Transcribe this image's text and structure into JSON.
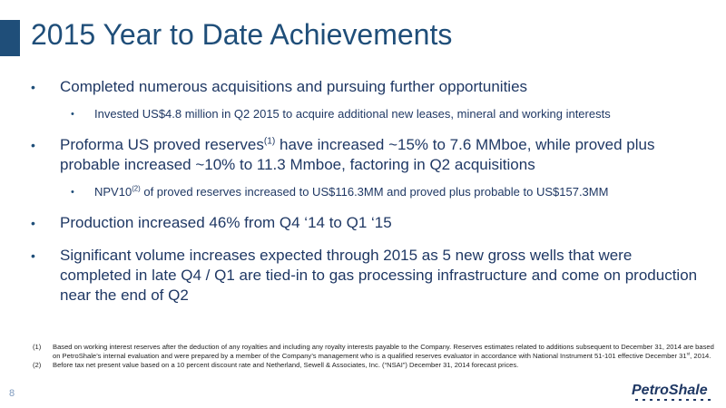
{
  "slide": {
    "title": "2015 Year to Date Achievements",
    "page_number": "8"
  },
  "bullets": [
    {
      "text": "Completed numerous acquisitions and pursuing further opportunities",
      "sub": [
        "Invested US$4.8 million in Q2 2015 to acquire additional new leases, mineral and working interests"
      ]
    },
    {
      "pre": "Proforma US proved reserves",
      "sup": "(1)",
      "post": " have increased ~15% to 7.6 MMboe, while proved plus probable increased ~10% to 11.3 Mmboe, factoring in Q2 acquisitions",
      "sub_pre": "NPV10",
      "sub_sup": "(2)",
      "sub_post": " of proved reserves increased to US$116.3MM and proved plus probable to US$157.3MM"
    },
    {
      "text": "Production increased 46% from Q4 ‘14 to Q1 ‘15"
    },
    {
      "text": "Significant volume increases expected through 2015 as 5 new gross wells that were completed in late Q4 / Q1 are tied-in to gas processing infrastructure and come on production near the end of Q2"
    }
  ],
  "footnotes": [
    {
      "marker": "(1)",
      "pre": "Based on working interest reserves after the deduction of any royalties and including any royalty interests payable to the Company.  Reserves estimates related to additions subsequent to December 31, 2014 are based on PetroShale’s internal evaluation and were prepared by a member of the Company’s management who is a qualified reserves evaluator in accordance with National Instrument 51-101 effective December 31",
      "sup": "st",
      "post": ", 2014."
    },
    {
      "marker": "(2)",
      "text": "Before tax net present value based on a 10 percent discount rate and Netherland, Sewell & Associates, Inc. (“NSAI”) December 31, 2014 forecast prices."
    }
  ],
  "logo": {
    "text": "PetroShale",
    "brand_color": "#1f3864"
  },
  "colors": {
    "title": "#1f4e79",
    "accent_bar": "#1f4e79",
    "body_text": "#1f3864"
  }
}
